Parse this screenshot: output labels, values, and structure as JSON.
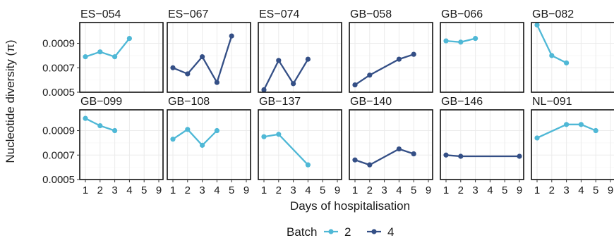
{
  "chart_data": {
    "type": "line",
    "xlabel": "Days of hospitalisation",
    "ylabel": "Nucleotide diversity (π)",
    "x_ticks": [
      "1",
      "2",
      "3",
      "4",
      "5",
      "9"
    ],
    "y_ticks": [
      0.0005,
      0.0007,
      0.0009
    ],
    "y_tick_labels": [
      "0.0005",
      "0.0007",
      "0.0009"
    ],
    "ylim": [
      0.0005,
      0.00107
    ],
    "grid": true,
    "legend": {
      "title": "Batch",
      "placement": "bottom",
      "entries": [
        {
          "label": "2",
          "color": "#4fb8d6"
        },
        {
          "label": "4",
          "color": "#344f86"
        }
      ]
    },
    "colors": {
      "2": "#4fb8d6",
      "4": "#344f86"
    },
    "panels": [
      {
        "title": "ES−054",
        "batch": "2",
        "days": [
          "1",
          "2",
          "3",
          "4"
        ],
        "values": [
          0.00079,
          0.00083,
          0.00079,
          0.00094
        ]
      },
      {
        "title": "ES−067",
        "batch": "4",
        "days": [
          "1",
          "2",
          "3",
          "4",
          "5"
        ],
        "values": [
          0.0007,
          0.00065,
          0.00079,
          0.00058,
          0.00096
        ]
      },
      {
        "title": "ES−074",
        "batch": "4",
        "days": [
          "1",
          "2",
          "3",
          "4"
        ],
        "values": [
          0.00052,
          0.00076,
          0.00057,
          0.00077
        ]
      },
      {
        "title": "GB−058",
        "batch": "4",
        "days": [
          "1",
          "2",
          "4",
          "5"
        ],
        "values": [
          0.00056,
          0.00064,
          0.00077,
          0.00081
        ]
      },
      {
        "title": "GB−066",
        "batch": "2",
        "days": [
          "1",
          "2",
          "3"
        ],
        "values": [
          0.00092,
          0.00091,
          0.00094
        ]
      },
      {
        "title": "GB−082",
        "batch": "2",
        "days": [
          "1",
          "2",
          "3"
        ],
        "values": [
          0.00105,
          0.0008,
          0.00074
        ]
      },
      {
        "title": "GB−099",
        "batch": "2",
        "days": [
          "1",
          "2",
          "3"
        ],
        "values": [
          0.001,
          0.00094,
          0.0009
        ]
      },
      {
        "title": "GB−108",
        "batch": "2",
        "days": [
          "1",
          "2",
          "3",
          "4"
        ],
        "values": [
          0.00083,
          0.00091,
          0.00078,
          0.0009
        ]
      },
      {
        "title": "GB−137",
        "batch": "2",
        "days": [
          "1",
          "2",
          "4"
        ],
        "values": [
          0.00085,
          0.00087,
          0.00062
        ]
      },
      {
        "title": "GB−140",
        "batch": "4",
        "days": [
          "1",
          "2",
          "4",
          "5"
        ],
        "values": [
          0.00066,
          0.00062,
          0.00075,
          0.00071
        ]
      },
      {
        "title": "GB−146",
        "batch": "4",
        "days": [
          "1",
          "2",
          "9"
        ],
        "values": [
          0.0007,
          0.00069,
          0.00069
        ]
      },
      {
        "title": "NL−091",
        "batch": "2",
        "days": [
          "1",
          "3",
          "4",
          "5"
        ],
        "values": [
          0.00084,
          0.00095,
          0.00095,
          0.0009
        ]
      }
    ]
  }
}
